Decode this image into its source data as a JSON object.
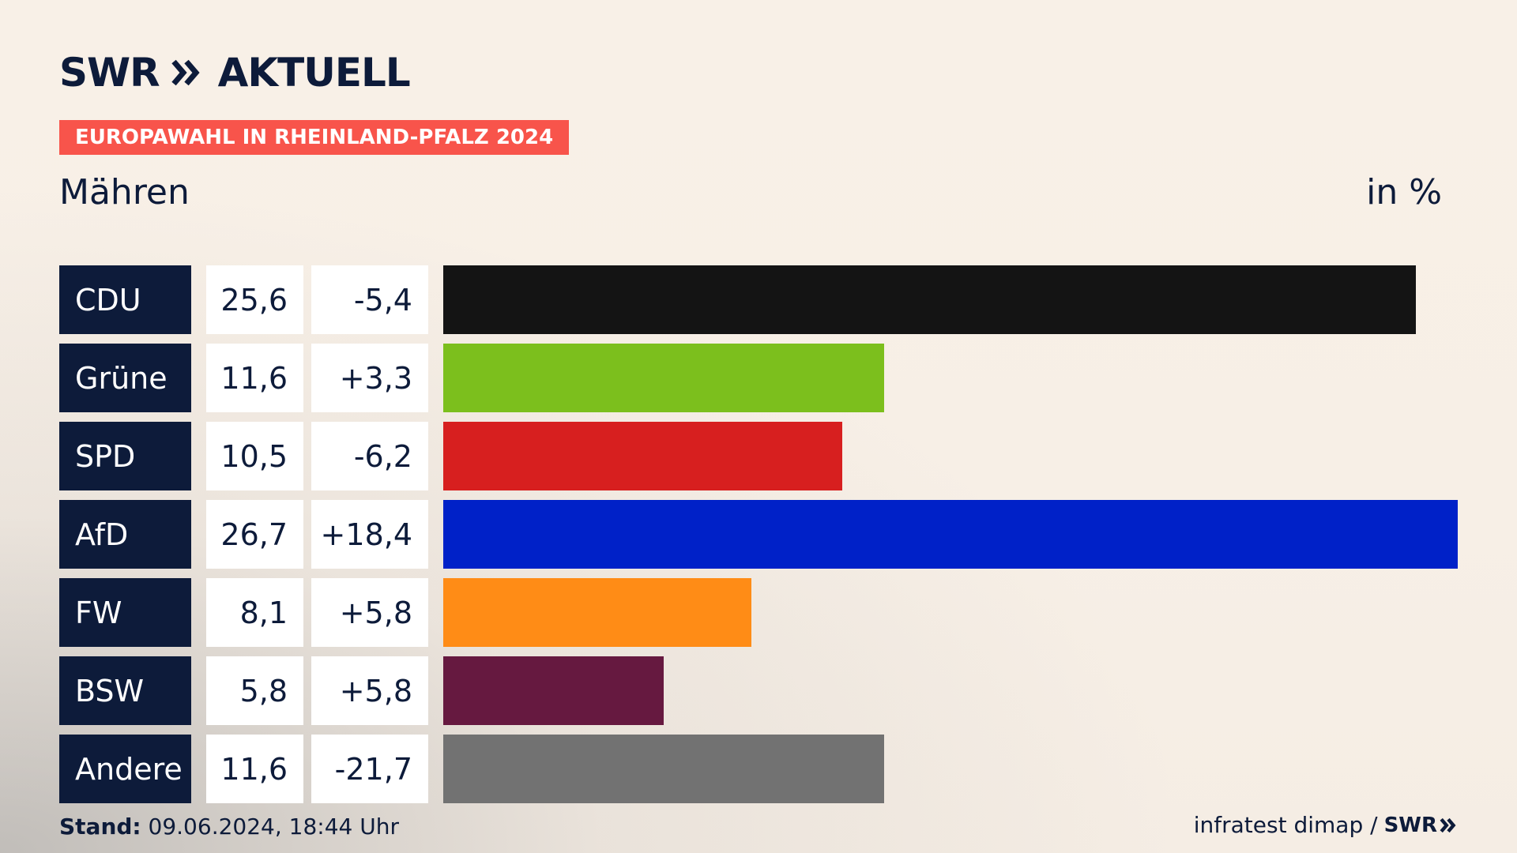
{
  "brand": {
    "logo_text": "SWR",
    "logo_suffix": "AKTUELL"
  },
  "badge": "EUROPAWAHL IN RHEINLAND-PFALZ 2024",
  "region": "Mähren",
  "unit": "in %",
  "colors": {
    "navy": "#0d1b3a",
    "badge": "#f8544b"
  },
  "chart_data": {
    "type": "bar",
    "orientation": "horizontal",
    "title": "Mähren",
    "unit": "in %",
    "xlim": [
      0,
      26.7
    ],
    "rows": [
      {
        "party": "CDU",
        "value": 25.6,
        "value_label": "25,6",
        "diff_label": "-5,4",
        "diff": -5.4,
        "color": "#141414"
      },
      {
        "party": "Grüne",
        "value": 11.6,
        "value_label": "11,6",
        "diff_label": "+3,3",
        "diff": 3.3,
        "color": "#7cbf1d"
      },
      {
        "party": "SPD",
        "value": 10.5,
        "value_label": "10,5",
        "diff_label": "-6,2",
        "diff": -6.2,
        "color": "#d71f1f"
      },
      {
        "party": "AfD",
        "value": 26.7,
        "value_label": "26,7",
        "diff_label": "+18,4",
        "diff": 18.4,
        "color": "#0021c8"
      },
      {
        "party": "FW",
        "value": 8.1,
        "value_label": "8,1",
        "diff_label": "+5,8",
        "diff": 5.8,
        "color": "#ff8c16"
      },
      {
        "party": "BSW",
        "value": 5.8,
        "value_label": "5,8",
        "diff_label": "+5,8",
        "diff": 5.8,
        "color": "#661940"
      },
      {
        "party": "Andere",
        "value": 11.6,
        "value_label": "11,6",
        "diff_label": "-21,7",
        "diff": -21.7,
        "color": "#727272"
      }
    ]
  },
  "footer": {
    "stand_label": "Stand:",
    "stand_value": "09.06.2024, 18:44 Uhr",
    "source": "infratest dimap /",
    "source_logo": "SWR"
  }
}
